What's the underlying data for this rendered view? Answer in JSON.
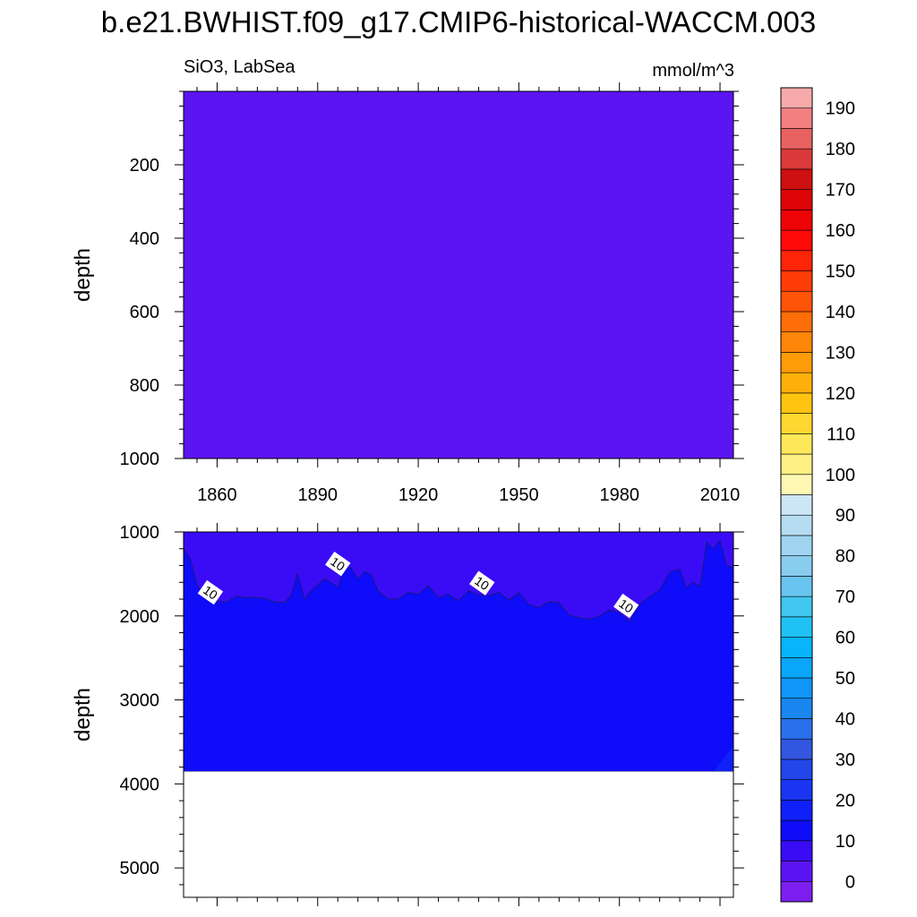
{
  "title": "b.e21.BWHIST.f09_g17.CMIP6-historical-WACCM.003",
  "left_label": "SiO3, LabSea",
  "right_label": "mmol/m^3",
  "chart_data": {
    "type": "contour",
    "variable": "SiO3",
    "region": "LabSea",
    "units": "mmol/m^3",
    "x_range": [
      1850,
      2014
    ],
    "x_ticks": [
      1860,
      1890,
      1920,
      1950,
      1980,
      2010
    ],
    "panels": [
      {
        "name": "upper",
        "ylabel": "depth",
        "y_range": [
          0,
          1000
        ],
        "y_ticks": [
          200,
          400,
          600,
          800,
          1000
        ],
        "fill_level": "0-5",
        "contour_lines": []
      },
      {
        "name": "lower",
        "ylabel": "depth",
        "y_range": [
          1000,
          5350
        ],
        "y_ticks": [
          1000,
          2000,
          3000,
          4000,
          5000
        ],
        "ocean_floor_depth": 3850,
        "contour_lines": [
          {
            "level": 10,
            "label_text": "10",
            "x": [
              1850,
              1852,
              1854,
              1856,
              1858,
              1860,
              1863,
              1866,
              1868,
              1871,
              1874,
              1877,
              1880,
              1882,
              1884,
              1886,
              1888,
              1890,
              1892,
              1894,
              1896,
              1898,
              1900,
              1902,
              1904,
              1906,
              1908,
              1911,
              1914,
              1917,
              1920,
              1923,
              1926,
              1929,
              1932,
              1935,
              1938,
              1941,
              1944,
              1947,
              1950,
              1953,
              1956,
              1959,
              1962,
              1965,
              1968,
              1971,
              1974,
              1977,
              1980,
              1983,
              1986,
              1989,
              1992,
              1995,
              1998,
              2000,
              2002,
              2004,
              2006,
              2008,
              2010,
              2012,
              2014
            ],
            "y": [
              1200,
              1320,
              1620,
              1760,
              1820,
              1830,
              1830,
              1760,
              1780,
              1780,
              1790,
              1830,
              1840,
              1760,
              1490,
              1800,
              1700,
              1630,
              1560,
              1600,
              1660,
              1420,
              1430,
              1560,
              1470,
              1510,
              1700,
              1800,
              1800,
              1720,
              1740,
              1640,
              1780,
              1740,
              1820,
              1700,
              1750,
              1760,
              1720,
              1810,
              1720,
              1860,
              1900,
              1830,
              1840,
              1990,
              2020,
              2040,
              2000,
              1930,
              1960,
              2070,
              1860,
              1770,
              1690,
              1480,
              1440,
              1660,
              1600,
              1650,
              1120,
              1200,
              1100,
              1400,
              1420
            ]
          }
        ],
        "contour_labels": [
          {
            "text": "10",
            "x": 1858,
            "y": 1720
          },
          {
            "text": "10",
            "x": 1896,
            "y": 1380
          },
          {
            "text": "10",
            "x": 1939,
            "y": 1610
          },
          {
            "text": "10",
            "x": 1982,
            "y": 1880
          }
        ]
      }
    ],
    "colorbar": {
      "levels": [
        -5,
        0,
        5,
        10,
        15,
        20,
        25,
        30,
        35,
        40,
        45,
        50,
        55,
        60,
        65,
        70,
        75,
        80,
        85,
        90,
        95,
        100,
        105,
        110,
        115,
        120,
        125,
        130,
        135,
        140,
        145,
        150,
        155,
        160,
        165,
        170,
        175,
        180,
        185,
        190,
        195
      ],
      "tick_labels": [
        "0",
        "10",
        "20",
        "30",
        "40",
        "50",
        "60",
        "70",
        "80",
        "90",
        "100",
        "110",
        "120",
        "130",
        "140",
        "150",
        "160",
        "170",
        "180",
        "190"
      ],
      "colors": [
        "#7c1ef0",
        "#5b14f2",
        "#3a0cf6",
        "#0e0cf8",
        "#1020f8",
        "#1a34f2",
        "#2246e8",
        "#3256e0",
        "#2a70ea",
        "#1a86f0",
        "#1096f6",
        "#0aa6fa",
        "#08b4fa",
        "#20c2f6",
        "#40c6f0",
        "#68c4ee",
        "#88ccee",
        "#a0d4f0",
        "#b6dcf2",
        "#cce6f6",
        "#fef8b4",
        "#fef084",
        "#fee85a",
        "#fed830",
        "#fec410",
        "#feb00a",
        "#fe9c08",
        "#fe8608",
        "#fe6e08",
        "#fe5408",
        "#fe3c08",
        "#fe2408",
        "#fe0a08",
        "#ee0406",
        "#dc0406",
        "#ce1010",
        "#da3a3a",
        "#e86262",
        "#f28080",
        "#f8aaaa"
      ]
    }
  }
}
